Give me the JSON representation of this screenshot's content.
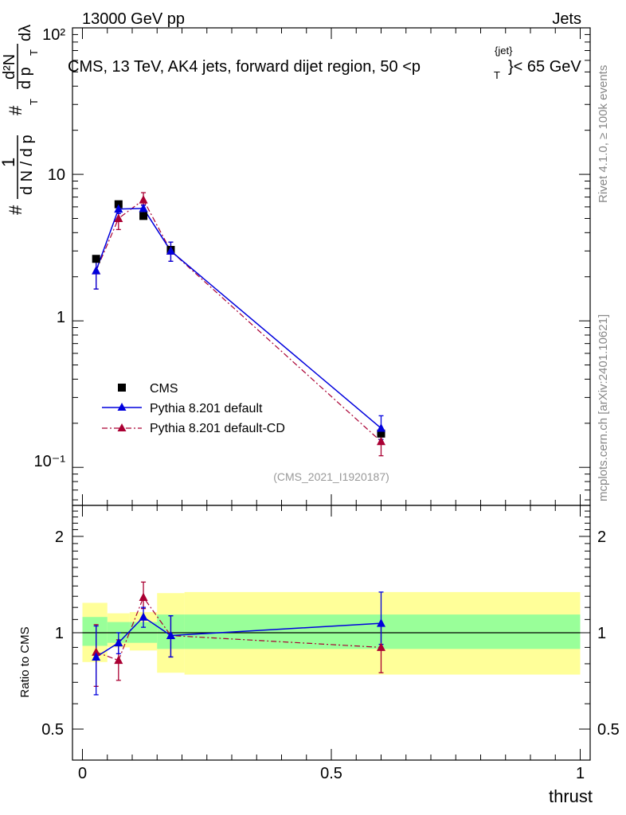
{
  "header": {
    "left": "13000 GeV pp",
    "right": "Jets",
    "side_top": "Rivet 4.1.0, ≥ 100k events",
    "side_bottom": "mcplots.cern.ch [arXiv:2401.10621]"
  },
  "chart_data": [
    {
      "type": "line",
      "scale": "log",
      "title": "CMS, 13 TeV, AK4 jets, forward dijet region, 50 <p",
      "title_sup": "{jet}",
      "title_sub": "T",
      "title_end": "}< 65 GeV",
      "watermark": "(CMS_2021_I1920187)",
      "ylabel_parts": {
        "hash1": "#",
        "one": "1",
        "dn_dpt": "d N / d p",
        "t1": "T",
        "hash2": "#",
        "dpt_dl": "d p",
        "t2": "T",
        "dl": "dλ",
        "d2n": "d²N"
      },
      "ylim": [
        0.055,
        100
      ],
      "ytick_labels": {
        "t100": "10²",
        "t10": "10",
        "t1": "1",
        "t01": "10⁻¹"
      },
      "x": [
        0.0275,
        0.0725,
        0.1225,
        0.1775,
        0.6
      ],
      "series": [
        {
          "name": "CMS",
          "color": "#000000",
          "marker": "square",
          "values": [
            2.65,
            6.25,
            5.2,
            3.05,
            0.17
          ],
          "errors": [
            0.05,
            0.1,
            0.1,
            0.05,
            0.01
          ]
        },
        {
          "name": "Pythia 8.201 default",
          "color": "#0000dd",
          "marker": "triangle",
          "line": "solid",
          "values": [
            2.2,
            5.8,
            5.85,
            3.0,
            0.185
          ],
          "err_lo": [
            0.55,
            0.4,
            0.4,
            0.45,
            0.03
          ],
          "err_hi": [
            0.5,
            0.4,
            0.3,
            0.45,
            0.04
          ]
        },
        {
          "name": "Pythia 8.201 default-CD",
          "color": "#aa0033",
          "marker": "triangle",
          "line": "dashdot",
          "values": [
            2.2,
            5.0,
            6.7,
            3.0,
            0.15
          ],
          "err_lo": [
            0.55,
            0.8,
            0.5,
            0.45,
            0.03
          ],
          "err_hi": [
            0.5,
            0.8,
            0.8,
            0.45,
            0.03
          ]
        }
      ]
    },
    {
      "type": "line",
      "scale": "log",
      "ylabel": "Ratio to CMS",
      "xlabel": "thrust",
      "xlim": [
        -0.02,
        1.02
      ],
      "ylim": [
        0.4,
        2.5
      ],
      "yticks": [
        {
          "v": 0.5,
          "label": "0.5"
        },
        {
          "v": 1,
          "label": "1"
        },
        {
          "v": 2,
          "label": "2"
        }
      ],
      "xticks": [
        {
          "v": 0,
          "label": "0"
        },
        {
          "v": 0.5,
          "label": "0.5"
        },
        {
          "v": 1,
          "label": "1"
        }
      ],
      "bands": [
        {
          "x0": 0.0,
          "x1": 0.05,
          "green": [
            0.91,
            1.12
          ],
          "yellow": [
            0.81,
            1.24
          ]
        },
        {
          "x0": 0.05,
          "x1": 0.095,
          "green": [
            0.93,
            1.08
          ],
          "yellow": [
            0.9,
            1.15
          ]
        },
        {
          "x0": 0.095,
          "x1": 0.15,
          "green": [
            0.93,
            1.08
          ],
          "yellow": [
            0.88,
            1.16
          ]
        },
        {
          "x0": 0.15,
          "x1": 0.205,
          "green": [
            0.89,
            1.14
          ],
          "yellow": [
            0.75,
            1.33
          ]
        },
        {
          "x0": 0.205,
          "x1": 1.0,
          "green": [
            0.89,
            1.14
          ],
          "yellow": [
            0.74,
            1.34
          ]
        }
      ],
      "x": [
        0.0275,
        0.0725,
        0.1225,
        0.1775,
        0.6
      ],
      "series": [
        {
          "name": "Pythia 8.201 default",
          "color": "#0000dd",
          "line": "solid",
          "values": [
            0.84,
            0.93,
            1.12,
            0.98,
            1.07
          ],
          "err_lo": [
            0.2,
            0.07,
            0.08,
            0.14,
            0.15
          ],
          "err_hi": [
            0.21,
            0.07,
            0.08,
            0.15,
            0.27
          ]
        },
        {
          "name": "Pythia 8.201 default-CD",
          "color": "#aa0033",
          "line": "dashdot",
          "values": [
            0.87,
            0.82,
            1.29,
            0.98,
            0.9
          ],
          "err_lo": [
            0.19,
            0.11,
            0.1,
            0.14,
            0.15
          ],
          "err_hi": [
            0.19,
            0.13,
            0.15,
            0.15,
            0.16
          ]
        }
      ]
    }
  ]
}
